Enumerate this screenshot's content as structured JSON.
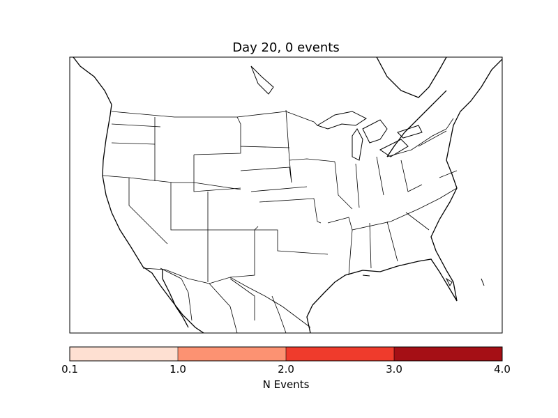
{
  "title": "Day 20, 0 events",
  "colorbar": {
    "label": "N Events",
    "ticks": [
      "0.1",
      "1.0",
      "2.0",
      "3.0",
      "4.0"
    ],
    "bins": [
      {
        "from": 0.1,
        "to": 1.0,
        "color": "#fee0d2"
      },
      {
        "from": 1.0,
        "to": 2.0,
        "color": "#fc9272"
      },
      {
        "from": 2.0,
        "to": 3.0,
        "color": "#ef3b2c"
      },
      {
        "from": 3.0,
        "to": 4.0,
        "color": "#a50f15"
      }
    ]
  },
  "map": {
    "region": "North America",
    "events": 0,
    "fill": "#ffffff",
    "line_color": "#000000"
  }
}
